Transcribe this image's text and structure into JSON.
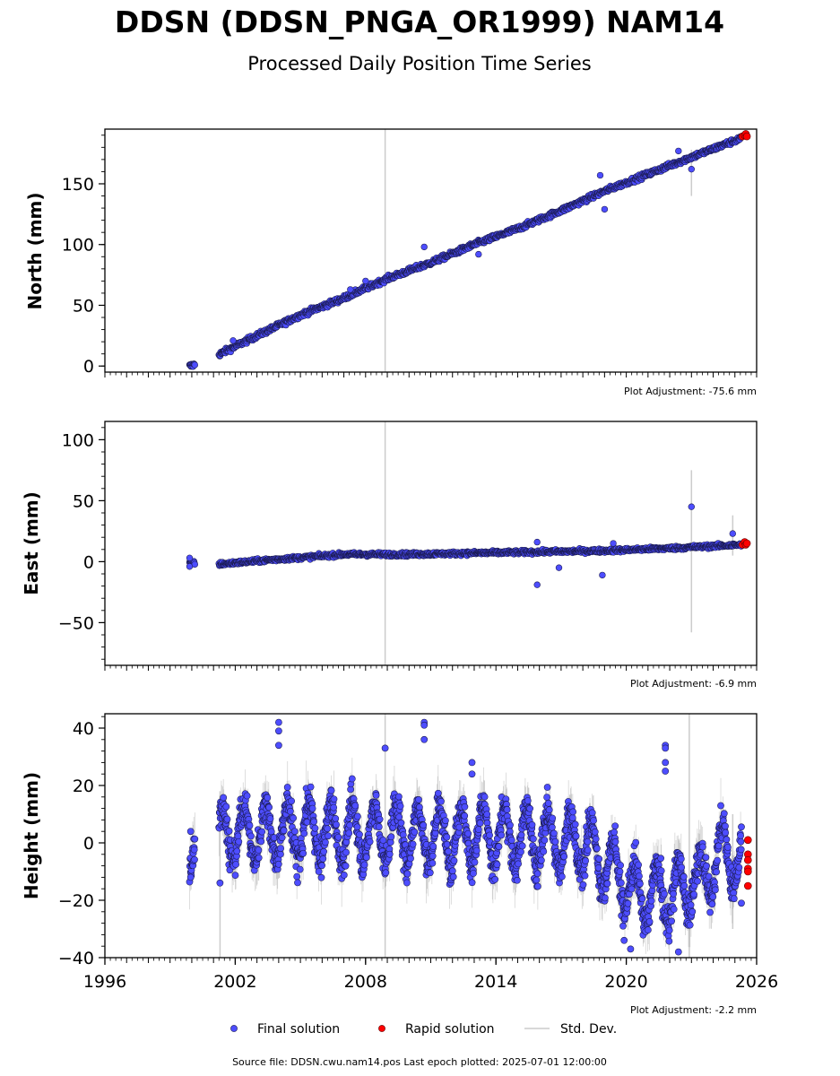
{
  "title": "DDSN (DDSN_PNGA_OR1999) NAM14",
  "subtitle": "Processed Daily Position Time Series",
  "source_label": "Source file: DDSN.cwu.nam14.pos  Last epoch plotted: 2025-07-01 12:00:00",
  "legend": [
    {
      "label": "Final solution",
      "color": "#4d4dff"
    },
    {
      "label": "Rapid solution",
      "color": "#ff0000"
    },
    {
      "label": "Std. Dev.",
      "color": "#cccccc"
    }
  ],
  "colors": {
    "final": "#4d4dff",
    "final_edge": "#1a1a4d",
    "rapid": "#ff0000",
    "stddev": "#cccccc"
  },
  "chart_data": [
    {
      "type": "scatter",
      "ylabel": "North (mm)",
      "adjustment": "Plot Adjustment: -75.6 mm",
      "xlim": [
        1996,
        2026
      ],
      "ylim": [
        -5,
        195
      ],
      "yticks": [
        0,
        50,
        100,
        150
      ],
      "ytick_labels": [
        "0",
        "50",
        "100",
        "150"
      ],
      "xtick_labels": [],
      "series": [
        {
          "name": "Final solution",
          "trend": [
            [
              1999.95,
              0
            ],
            [
              2000.1,
              1
            ],
            [
              2001.3,
              10
            ],
            [
              2003,
              25
            ],
            [
              2005,
              42
            ],
            [
              2007,
              56
            ],
            [
              2009,
              72
            ],
            [
              2011,
              85
            ],
            [
              2013,
              100
            ],
            [
              2015,
              113
            ],
            [
              2017,
              128
            ],
            [
              2019,
              144
            ],
            [
              2021,
              158
            ],
            [
              2023,
              172
            ],
            [
              2025.5,
              189
            ]
          ],
          "scatter_mm": 2,
          "outliers": [
            [
              2001.9,
              21
            ],
            [
              2007.3,
              63
            ],
            [
              2008.0,
              70
            ],
            [
              2010.7,
              98
            ],
            [
              2013.2,
              92
            ],
            [
              2018.8,
              157
            ],
            [
              2019.0,
              129
            ],
            [
              2022.4,
              177
            ],
            [
              2023.0,
              162
            ]
          ]
        },
        {
          "name": "Rapid solution",
          "points": [
            [
              2025.35,
              189
            ],
            [
              2025.45,
              190
            ],
            [
              2025.5,
              191
            ],
            [
              2025.55,
              189
            ]
          ]
        }
      ],
      "stddev_spikes": [
        [
          2008.9,
          -5,
          195
        ],
        [
          2023.0,
          140,
          178
        ]
      ]
    },
    {
      "type": "scatter",
      "ylabel": "East (mm)",
      "adjustment": "Plot Adjustment: -6.9 mm",
      "xlim": [
        1996,
        2026
      ],
      "ylim": [
        -85,
        115
      ],
      "yticks": [
        -50,
        0,
        50,
        100
      ],
      "ytick_labels": [
        "−50",
        "0",
        "50",
        "100"
      ],
      "xtick_labels": [],
      "series": [
        {
          "name": "Final solution",
          "trend": [
            [
              1999.95,
              -1
            ],
            [
              2001.3,
              -2
            ],
            [
              2004,
              2
            ],
            [
              2007,
              6
            ],
            [
              2010,
              6
            ],
            [
              2013,
              7
            ],
            [
              2016,
              8
            ],
            [
              2019,
              9
            ],
            [
              2022,
              11
            ],
            [
              2025.5,
              14
            ]
          ],
          "scatter_mm": 1.5,
          "outliers": [
            [
              1999.9,
              -4
            ],
            [
              1999.9,
              3
            ],
            [
              2015.9,
              -19
            ],
            [
              2015.9,
              16
            ],
            [
              2016.9,
              -5
            ],
            [
              2018.9,
              -11
            ],
            [
              2019.4,
              15
            ],
            [
              2023.0,
              45
            ],
            [
              2024.9,
              23
            ]
          ]
        },
        {
          "name": "Rapid solution",
          "points": [
            [
              2025.35,
              14
            ],
            [
              2025.45,
              16
            ],
            [
              2025.5,
              14
            ],
            [
              2025.55,
              15
            ]
          ]
        }
      ],
      "stddev_spikes": [
        [
          2008.9,
          -85,
          115
        ],
        [
          2023.0,
          -58,
          75
        ],
        [
          2024.9,
          5,
          38
        ]
      ]
    },
    {
      "type": "scatter",
      "ylabel": "Height (mm)",
      "adjustment": "Plot Adjustment: -2.2 mm",
      "xlim": [
        1996,
        2026
      ],
      "ylim": [
        -40,
        45
      ],
      "yticks": [
        -40,
        -20,
        0,
        20,
        40
      ],
      "ytick_labels": [
        "−40",
        "−20",
        "0",
        "20",
        "40"
      ],
      "xticks": [
        1996,
        2002,
        2008,
        2014,
        2020,
        2026
      ],
      "xtick_labels": [
        "1996",
        "2002",
        "2008",
        "2014",
        "2020",
        "2026"
      ],
      "series": [
        {
          "name": "Final solution",
          "trend": [
            [
              1999.95,
              0
            ],
            [
              2001.3,
              3
            ],
            [
              2005,
              4
            ],
            [
              2010,
              3
            ],
            [
              2015,
              2
            ],
            [
              2018,
              0
            ],
            [
              2019.5,
              -10
            ],
            [
              2020.5,
              -18
            ],
            [
              2022,
              -18
            ],
            [
              2023.5,
              -12
            ],
            [
              2024.5,
              -3
            ],
            [
              2025.5,
              -8
            ]
          ],
          "seasonal_amp": 10,
          "scatter_mm": 5,
          "outliers": [
            [
              1999.95,
              -12
            ],
            [
              1999.95,
              4
            ],
            [
              2001.3,
              -14
            ],
            [
              2004.0,
              42
            ],
            [
              2004.0,
              39
            ],
            [
              2004.0,
              34
            ],
            [
              2008.9,
              33
            ],
            [
              2010.7,
              42
            ],
            [
              2010.7,
              41
            ],
            [
              2010.7,
              36
            ],
            [
              2012.9,
              28
            ],
            [
              2012.9,
              24
            ],
            [
              2021.8,
              34
            ],
            [
              2021.8,
              33
            ],
            [
              2021.8,
              28
            ],
            [
              2021.8,
              25
            ],
            [
              2019.9,
              -34
            ],
            [
              2020.2,
              -37
            ],
            [
              2022.4,
              -38
            ],
            [
              2025.3,
              -21
            ]
          ]
        },
        {
          "name": "Rapid solution",
          "points": [
            [
              2025.6,
              1
            ],
            [
              2025.6,
              -4
            ],
            [
              2025.6,
              -6
            ],
            [
              2025.6,
              -9
            ],
            [
              2025.6,
              -10
            ],
            [
              2025.6,
              -15
            ]
          ]
        }
      ],
      "stddev_spikes": [
        [
          2001.3,
          -40,
          18
        ],
        [
          2008.9,
          -40,
          45
        ],
        [
          2022.9,
          -40,
          45
        ],
        [
          2024.9,
          -30,
          10
        ]
      ]
    }
  ]
}
